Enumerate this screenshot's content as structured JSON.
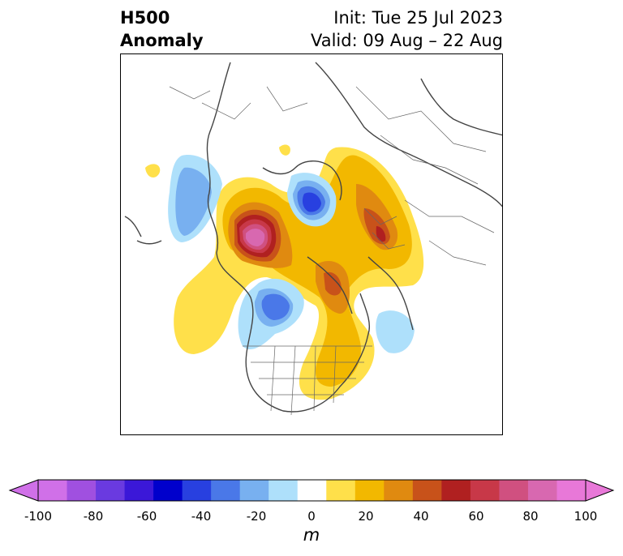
{
  "header": {
    "title_line1": "H500",
    "title_line2": "Anomaly",
    "init": "Init: Tue 25 Jul 2023",
    "valid": "Valid: 09 Aug – 22 Aug"
  },
  "colorbar": {
    "unit": "m",
    "ticks": [
      "-100",
      "-80",
      "-60",
      "-40",
      "-20",
      "0",
      "20",
      "40",
      "60",
      "80",
      "100"
    ],
    "levels": [
      -100,
      -90,
      -80,
      -70,
      -60,
      -50,
      -40,
      -30,
      -20,
      -10,
      10,
      20,
      30,
      40,
      50,
      60,
      70,
      80,
      90,
      100
    ],
    "colors": [
      "#d070e8",
      "#a050e0",
      "#6a3ae0",
      "#3b18d8",
      "#0000cc",
      "#2840e0",
      "#4a78e8",
      "#78b0f0",
      "#aee0fb",
      "#ffffff",
      "#ffe04a",
      "#f2b800",
      "#e08a10",
      "#c8521a",
      "#b02020",
      "#c83848",
      "#d05080",
      "#d868b0",
      "#e878d8"
    ],
    "extend_low_color": "#d070e8",
    "extend_high_color": "#e878d8"
  },
  "anomalies": [
    {
      "label": "negative",
      "value": -50,
      "color": "#2840e0"
    },
    {
      "label": "positive",
      "value": 100,
      "color": "#e878d8"
    }
  ]
}
